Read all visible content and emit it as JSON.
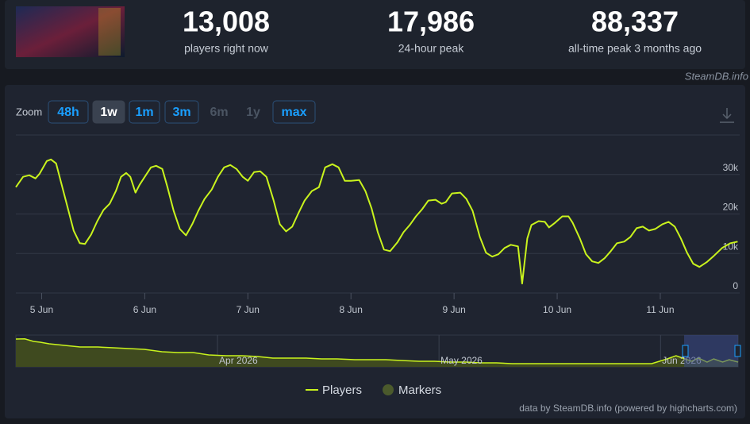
{
  "header": {
    "stats": [
      {
        "value": "13,008",
        "label": "players right now"
      },
      {
        "value": "17,986",
        "label": "24-hour peak"
      },
      {
        "value": "88,337",
        "label": "all-time peak 3 months ago"
      }
    ],
    "source": "SteamDB.info"
  },
  "ui": {
    "zoom_label": "Zoom",
    "zoom": [
      "48h",
      "1w",
      "1m",
      "3m",
      "6m",
      "1y",
      "max"
    ],
    "zoom_active": "1w",
    "zoom_disabled": [
      "6m",
      "1y"
    ],
    "credits": "data by SteamDB.info (powered by highcharts.com)"
  },
  "chart_data": [
    {
      "type": "line",
      "grid": true,
      "x": [
        4.75,
        4.82,
        4.88,
        4.94,
        4.98,
        5.05,
        5.09,
        5.14,
        5.18,
        5.25,
        5.31,
        5.37,
        5.42,
        5.48,
        5.54,
        5.6,
        5.66,
        5.72,
        5.77,
        5.82,
        5.86,
        5.91,
        5.95,
        6.0,
        6.06,
        6.11,
        6.17,
        6.22,
        6.28,
        6.34,
        6.4,
        6.46,
        6.52,
        6.58,
        6.65,
        6.71,
        6.77,
        6.83,
        6.89,
        6.95,
        7.0,
        7.06,
        7.12,
        7.18,
        7.25,
        7.31,
        7.37,
        7.43,
        7.49,
        7.55,
        7.62,
        7.69,
        7.75,
        7.82,
        7.88,
        7.94,
        8.0,
        8.08,
        8.14,
        8.2,
        8.26,
        8.32,
        8.38,
        8.45,
        8.51,
        8.57,
        8.63,
        8.69,
        8.75,
        8.82,
        8.88,
        8.92,
        8.98,
        9.06,
        9.12,
        9.18,
        9.25,
        9.31,
        9.37,
        9.43,
        9.49,
        9.55,
        9.62,
        9.66,
        9.71,
        9.75,
        9.82,
        9.88,
        9.92,
        9.98,
        10.05,
        10.11,
        10.15,
        10.22,
        10.28,
        10.34,
        10.4,
        10.46,
        10.52,
        10.58,
        10.65,
        10.71,
        10.77,
        10.83,
        10.89,
        10.95,
        11.02,
        11.08,
        11.14,
        11.2,
        11.26,
        11.32,
        11.38,
        11.45,
        11.52,
        11.6,
        11.68,
        11.75
      ],
      "series": [
        {
          "name": "Players",
          "color": "#c9f31d",
          "values": [
            26800,
            29400,
            29800,
            29000,
            30200,
            33400,
            33800,
            32800,
            28800,
            21800,
            15800,
            12600,
            12400,
            14800,
            18200,
            21000,
            22600,
            25800,
            29400,
            30400,
            29400,
            25400,
            27400,
            29400,
            31800,
            32200,
            31400,
            26800,
            20800,
            16200,
            14600,
            17400,
            20800,
            23800,
            26200,
            29400,
            31800,
            32400,
            31400,
            29400,
            28400,
            30600,
            30800,
            29400,
            23400,
            17400,
            15600,
            16800,
            20200,
            23400,
            25800,
            26800,
            31800,
            32600,
            31800,
            28400,
            28400,
            28600,
            25800,
            21400,
            15400,
            11000,
            10600,
            12800,
            15400,
            17200,
            19400,
            21200,
            23400,
            23600,
            22600,
            23000,
            25200,
            25400,
            23800,
            20800,
            14200,
            10200,
            9200,
            9800,
            11400,
            12200,
            11800,
            2400,
            13800,
            17200,
            18200,
            18000,
            16600,
            17800,
            19400,
            19400,
            17800,
            13800,
            9800,
            8000,
            7600,
            8800,
            10600,
            12600,
            13000,
            14200,
            16400,
            16800,
            15800,
            16200,
            17400,
            18000,
            16800,
            13800,
            10200,
            7400,
            6600,
            7800,
            9400,
            11400,
            12600,
            13000
          ]
        }
      ],
      "markers": {
        "name": "Markers",
        "color": "#4b5a2c",
        "x": [],
        "values": []
      },
      "xlim": [
        4.75,
        11.77
      ],
      "xticks": [
        {
          "value": 5,
          "label": "5 Jun"
        },
        {
          "value": 6,
          "label": "6 Jun"
        },
        {
          "value": 7,
          "label": "7 Jun"
        },
        {
          "value": 8,
          "label": "8 Jun"
        },
        {
          "value": 9,
          "label": "9 Jun"
        },
        {
          "value": 10,
          "label": "10 Jun"
        },
        {
          "value": 11,
          "label": "11 Jun"
        }
      ],
      "ylim": [
        0,
        40000
      ],
      "yticks": [
        0,
        {
          "value": 10000,
          "label": "10k"
        },
        {
          "value": 20000,
          "label": "20k"
        },
        {
          "value": 30000,
          "label": "30k"
        }
      ]
    },
    {
      "type": "area",
      "color": "#c9f31d",
      "fill": "#3f4a1f",
      "x": [
        3.09,
        3.13,
        3.17,
        3.2,
        3.24,
        3.31,
        3.38,
        3.46,
        3.53,
        3.6,
        3.67,
        3.75,
        3.82,
        3.89,
        3.96,
        4.04,
        4.11,
        4.18,
        4.25,
        4.33,
        4.4,
        4.47,
        4.54,
        4.62,
        4.69,
        4.76,
        4.83,
        4.91,
        4.98,
        5.05,
        5.12,
        5.19,
        5.26,
        5.33,
        5.4,
        5.47,
        5.54,
        5.61,
        5.68,
        5.75,
        5.82,
        5.89,
        5.96,
        6.03,
        6.07,
        6.1,
        6.14,
        6.17,
        6.21,
        6.24,
        6.28,
        6.31,
        6.35
      ],
      "values": [
        87500,
        88000,
        80000,
        77500,
        72500,
        67500,
        62500,
        62500,
        60000,
        57500,
        55000,
        47500,
        45000,
        45000,
        37500,
        35000,
        35000,
        32500,
        27500,
        27500,
        27500,
        25000,
        25000,
        22500,
        22500,
        22500,
        20000,
        17500,
        17500,
        15000,
        15000,
        12500,
        12500,
        10000,
        10000,
        10000,
        10000,
        10000,
        10000,
        10000,
        10000,
        10000,
        10000,
        25000,
        35000,
        27500,
        17500,
        27500,
        15000,
        25000,
        15000,
        22500,
        15000
      ],
      "xlim": [
        3.09,
        6.35
      ],
      "xticks": [
        {
          "value": 4,
          "label": "Apr 2026"
        },
        {
          "value": 5,
          "label": "May 2026"
        },
        {
          "value": 6,
          "label": "Jun 2026"
        }
      ],
      "ylim": [
        0,
        100000
      ]
    }
  ]
}
